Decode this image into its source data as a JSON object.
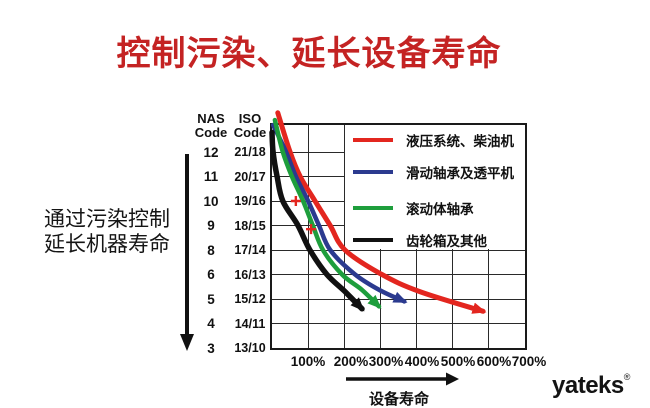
{
  "title": "控制污染、延长设备寿命",
  "side_note": {
    "line1": "通过污染控制",
    "line2": "延长机器寿命"
  },
  "y_axis_headers": {
    "nas": [
      "NAS",
      "Code"
    ],
    "iso": [
      "ISO",
      "Code"
    ]
  },
  "logo": {
    "text": "yateks",
    "registered_mark": "®"
  },
  "colors": {
    "title_red": "#c42323",
    "hydraulic_red": "#e3261f",
    "sliding_bearing_blue": "#2b3a8f",
    "rolling_bearing_green": "#1e9e3c",
    "gearbox_black": "#111111"
  },
  "chart_data": {
    "type": "line",
    "title": "控制污染、延长设备寿命",
    "xlabel": "设备寿命",
    "x_ticks": [
      "100%",
      "200%",
      "300%",
      "400%",
      "500%",
      "600%",
      "700%"
    ],
    "x_range_pct": [
      0,
      700
    ],
    "grid": true,
    "legend_position": "top-right",
    "y_axis": {
      "nas_header": "NAS Code",
      "iso_header": "ISO Code",
      "nas_codes": [
        "12",
        "11",
        "10",
        "9",
        "8",
        "6",
        "5",
        "4",
        "3"
      ],
      "iso_codes": [
        "21/18",
        "20/17",
        "19/16",
        "18/15",
        "17/14",
        "16/13",
        "15/12",
        "14/11",
        "13/10"
      ]
    },
    "series": [
      {
        "name": "液压系统、柴油机",
        "color": "#e3261f",
        "points": [
          {
            "life_pct": 16,
            "iso": 22.6
          },
          {
            "life_pct": 50,
            "iso": 21
          },
          {
            "life_pct": 78,
            "iso": 20
          },
          {
            "life_pct": 119,
            "iso": 19
          },
          {
            "life_pct": 161,
            "iso": 18
          },
          {
            "life_pct": 202,
            "iso": 17
          },
          {
            "life_pct": 304,
            "iso": 16
          },
          {
            "life_pct": 409,
            "iso": 15.3
          },
          {
            "life_pct": 584,
            "iso": 14.5
          }
        ]
      },
      {
        "name": "滑动轴承及透平机",
        "color": "#2b3a8f",
        "points": [
          {
            "life_pct": 3,
            "iso": 22.1
          },
          {
            "life_pct": 39,
            "iso": 21
          },
          {
            "life_pct": 66,
            "iso": 20
          },
          {
            "life_pct": 100,
            "iso": 19
          },
          {
            "life_pct": 130,
            "iso": 18
          },
          {
            "life_pct": 161,
            "iso": 17
          },
          {
            "life_pct": 230,
            "iso": 16
          },
          {
            "life_pct": 299,
            "iso": 15.35
          },
          {
            "life_pct": 366,
            "iso": 14.9
          }
        ]
      },
      {
        "name": "滚动体轴承",
        "color": "#1e9e3c",
        "points": [
          {
            "life_pct": 8,
            "iso": 22.3
          },
          {
            "life_pct": 30,
            "iso": 21
          },
          {
            "life_pct": 55,
            "iso": 20
          },
          {
            "life_pct": 86,
            "iso": 19
          },
          {
            "life_pct": 113,
            "iso": 18
          },
          {
            "life_pct": 141,
            "iso": 17
          },
          {
            "life_pct": 194,
            "iso": 16
          },
          {
            "life_pct": 249,
            "iso": 15.37
          },
          {
            "life_pct": 296,
            "iso": 14.7
          }
        ]
      },
      {
        "name": "齿轮箱及其他",
        "color": "#111111",
        "points": [
          {
            "life_pct": 0,
            "iso": 21.8
          },
          {
            "life_pct": 3,
            "iso": 21
          },
          {
            "life_pct": 14,
            "iso": 20
          },
          {
            "life_pct": 30,
            "iso": 19
          },
          {
            "life_pct": 72,
            "iso": 18
          },
          {
            "life_pct": 105,
            "iso": 17
          },
          {
            "life_pct": 152,
            "iso": 16
          },
          {
            "life_pct": 202,
            "iso": 15.3
          },
          {
            "life_pct": 249,
            "iso": 14.6
          }
        ]
      }
    ],
    "point_markers": [
      {
        "life_pct": 66,
        "iso": 19,
        "symbol": "+",
        "color": "#e3261f"
      },
      {
        "life_pct": 108,
        "iso": 17.85,
        "symbol": "+",
        "color": "#e3261f"
      }
    ]
  }
}
